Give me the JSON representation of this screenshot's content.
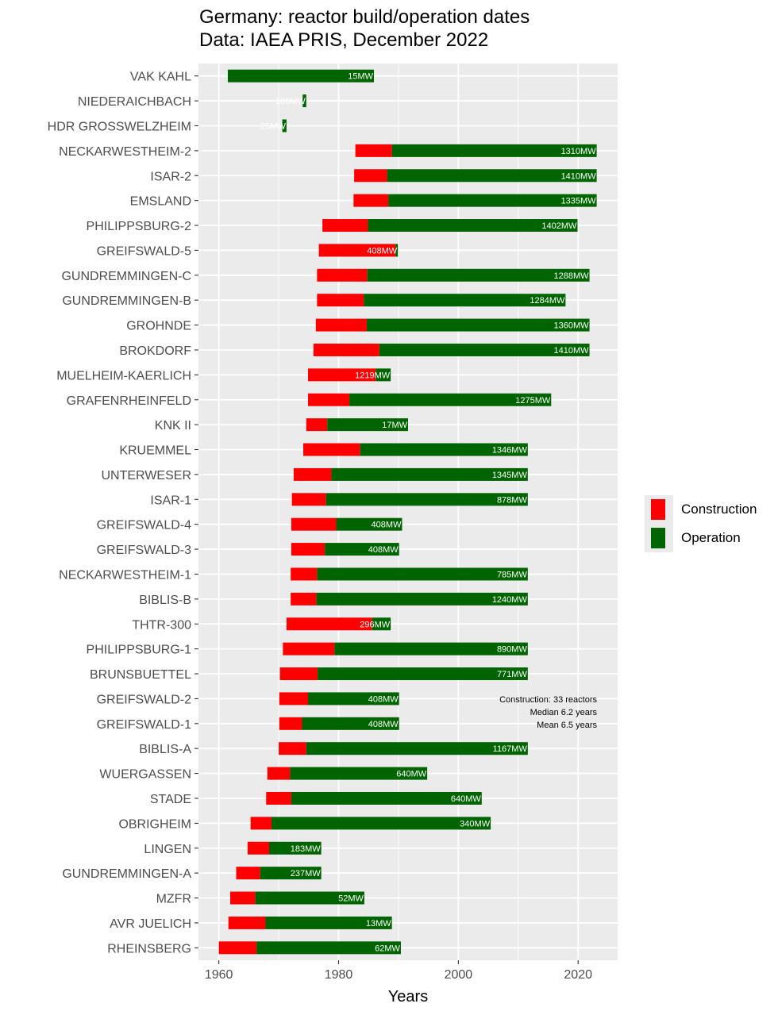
{
  "chart_data": {
    "type": "bar",
    "orientation": "horizontal-timeline",
    "title": "Germany: reactor build/operation dates",
    "subtitle": "Data: IAEA PRIS, December 2022",
    "xlabel": "Years",
    "ylabel": "",
    "xlim": [
      1956.6,
      2026.6
    ],
    "xticks": [
      1960,
      1980,
      2000,
      2020
    ],
    "grid": true,
    "legend_placement": "right",
    "colors": {
      "construction": "#ff0000",
      "operation": "#006400",
      "panel": "#ebebeb",
      "grid": "#ffffff"
    },
    "series": [
      {
        "name": "Construction",
        "color": "#ff0000"
      },
      {
        "name": "Operation",
        "color": "#006400"
      }
    ],
    "annotation": [
      "Construction: 33 reactors",
      "Median 6.2 years",
      "Mean 6.5 years"
    ],
    "reactors": [
      {
        "name": "VAK KAHL",
        "construction_start": null,
        "operation_start": 1961.5,
        "end": 1985.9,
        "capacity": "15MW"
      },
      {
        "name": "NIEDERAICHBACH",
        "construction_start": null,
        "operation_start": 1974.0,
        "end": 1974.6,
        "capacity": "100MW"
      },
      {
        "name": "HDR GROSSWELZHEIM",
        "construction_start": null,
        "operation_start": 1970.6,
        "end": 1971.3,
        "capacity": "25MW"
      },
      {
        "name": "NECKARWESTHEIM-2",
        "construction_start": 1982.8,
        "operation_start": 1988.9,
        "end": 2023.1,
        "capacity": "1310MW"
      },
      {
        "name": "ISAR-2",
        "construction_start": 1982.6,
        "operation_start": 1988.1,
        "end": 2023.1,
        "capacity": "1410MW"
      },
      {
        "name": "EMSLAND",
        "construction_start": 1982.5,
        "operation_start": 1988.3,
        "end": 2023.1,
        "capacity": "1335MW"
      },
      {
        "name": "PHILIPPSBURG-2",
        "construction_start": 1977.3,
        "operation_start": 1984.9,
        "end": 2019.9,
        "capacity": "1402MW"
      },
      {
        "name": "GREIFSWALD-5",
        "construction_start": 1976.7,
        "operation_start": 1989.5,
        "end": 1989.9,
        "capacity": "408MW"
      },
      {
        "name": "GUNDREMMINGEN-C",
        "construction_start": 1976.4,
        "operation_start": 1984.8,
        "end": 2021.9,
        "capacity": "1288MW"
      },
      {
        "name": "GUNDREMMINGEN-B",
        "construction_start": 1976.4,
        "operation_start": 1984.2,
        "end": 2017.9,
        "capacity": "1284MW"
      },
      {
        "name": "GROHNDE",
        "construction_start": 1976.2,
        "operation_start": 1984.7,
        "end": 2021.9,
        "capacity": "1360MW"
      },
      {
        "name": "BROKDORF",
        "construction_start": 1975.8,
        "operation_start": 1986.8,
        "end": 2021.9,
        "capacity": "1410MW"
      },
      {
        "name": "MUELHEIM-KAERLICH",
        "construction_start": 1974.9,
        "operation_start": 1986.2,
        "end": 1988.7,
        "capacity": "1219MW"
      },
      {
        "name": "GRAFENRHEINFELD",
        "construction_start": 1974.9,
        "operation_start": 1981.8,
        "end": 2015.5,
        "capacity": "1275MW"
      },
      {
        "name": "KNK II",
        "construction_start": 1974.6,
        "operation_start": 1978.1,
        "end": 1991.6,
        "capacity": "17MW"
      },
      {
        "name": "KRUEMMEL",
        "construction_start": 1974.1,
        "operation_start": 1983.6,
        "end": 2011.6,
        "capacity": "1346MW"
      },
      {
        "name": "UNTERWESER",
        "construction_start": 1972.5,
        "operation_start": 1978.8,
        "end": 2011.6,
        "capacity": "1345MW"
      },
      {
        "name": "ISAR-1",
        "construction_start": 1972.2,
        "operation_start": 1977.9,
        "end": 2011.6,
        "capacity": "878MW"
      },
      {
        "name": "GREIFSWALD-4",
        "construction_start": 1972.1,
        "operation_start": 1979.6,
        "end": 1990.6,
        "capacity": "408MW"
      },
      {
        "name": "GREIFSWALD-3",
        "construction_start": 1972.1,
        "operation_start": 1977.7,
        "end": 1990.1,
        "capacity": "408MW"
      },
      {
        "name": "NECKARWESTHEIM-1",
        "construction_start": 1972.0,
        "operation_start": 1976.4,
        "end": 2011.6,
        "capacity": "785MW"
      },
      {
        "name": "BIBLIS-B",
        "construction_start": 1972.0,
        "operation_start": 1976.3,
        "end": 2011.6,
        "capacity": "1240MW"
      },
      {
        "name": "THTR-300",
        "construction_start": 1971.3,
        "operation_start": 1985.6,
        "end": 1988.7,
        "capacity": "296MW"
      },
      {
        "name": "PHILIPPSBURG-1",
        "construction_start": 1970.7,
        "operation_start": 1979.3,
        "end": 2011.6,
        "capacity": "890MW"
      },
      {
        "name": "BRUNSBUETTEL",
        "construction_start": 1970.2,
        "operation_start": 1976.5,
        "end": 2011.6,
        "capacity": "771MW"
      },
      {
        "name": "GREIFSWALD-2",
        "construction_start": 1970.1,
        "operation_start": 1974.9,
        "end": 1990.1,
        "capacity": "408MW"
      },
      {
        "name": "GREIFSWALD-1",
        "construction_start": 1970.1,
        "operation_start": 1973.9,
        "end": 1990.1,
        "capacity": "408MW"
      },
      {
        "name": "BIBLIS-A",
        "construction_start": 1970.0,
        "operation_start": 1974.6,
        "end": 2011.6,
        "capacity": "1167MW"
      },
      {
        "name": "WUERGASSEN",
        "construction_start": 1968.1,
        "operation_start": 1971.9,
        "end": 1994.8,
        "capacity": "640MW"
      },
      {
        "name": "STADE",
        "construction_start": 1967.9,
        "operation_start": 1972.1,
        "end": 2003.9,
        "capacity": "640MW"
      },
      {
        "name": "OBRIGHEIM",
        "construction_start": 1965.3,
        "operation_start": 1968.8,
        "end": 2005.4,
        "capacity": "340MW"
      },
      {
        "name": "LINGEN",
        "construction_start": 1964.8,
        "operation_start": 1968.4,
        "end": 1977.1,
        "capacity": "183MW"
      },
      {
        "name": "GUNDREMMINGEN-A",
        "construction_start": 1962.9,
        "operation_start": 1966.9,
        "end": 1977.1,
        "capacity": "237MW"
      },
      {
        "name": "MZFR",
        "construction_start": 1961.9,
        "operation_start": 1966.1,
        "end": 1984.3,
        "capacity": "52MW"
      },
      {
        "name": "AVR JUELICH",
        "construction_start": 1961.6,
        "operation_start": 1967.8,
        "end": 1988.9,
        "capacity": "13MW"
      },
      {
        "name": "RHEINSBERG",
        "construction_start": 1960.0,
        "operation_start": 1966.3,
        "end": 1990.4,
        "capacity": "62MW"
      }
    ]
  }
}
